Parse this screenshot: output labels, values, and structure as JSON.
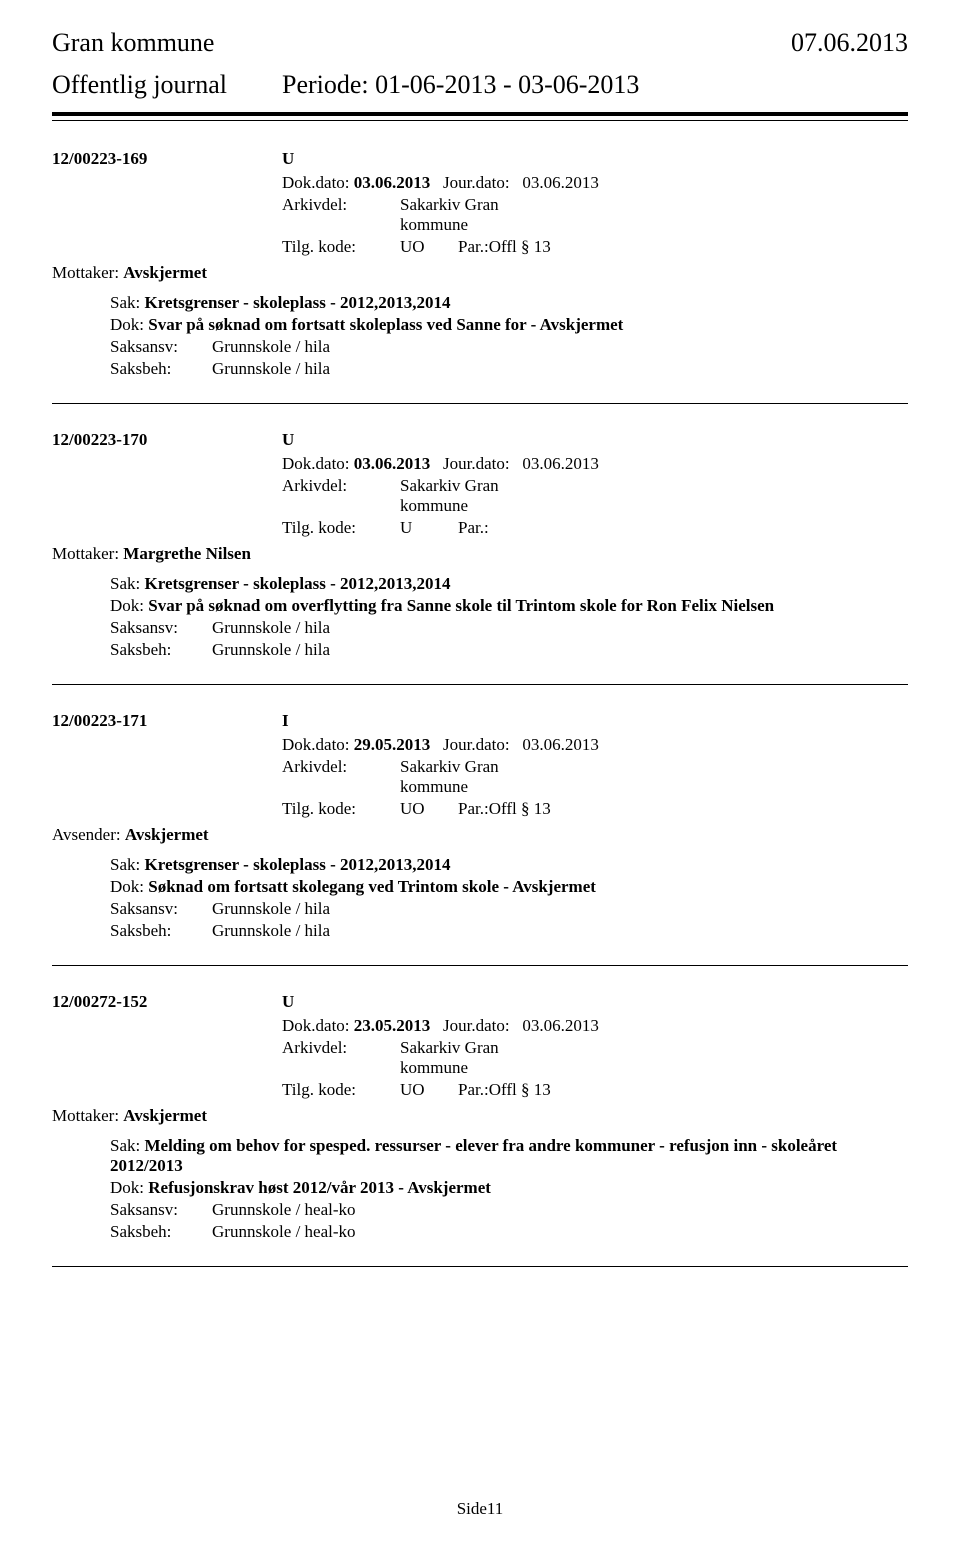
{
  "header": {
    "title": "Gran kommune",
    "date": "07.06.2013",
    "journal_label": "Offentlig journal",
    "period": "Periode: 01-06-2013 - 03-06-2013"
  },
  "labels": {
    "dok_dato": "Dok.dato:",
    "jour_dato": "Jour.dato:",
    "arkivdel": "Arkivdel:",
    "tilg_kode": "Tilg. kode:",
    "par": "Par.:",
    "mottaker": "Mottaker:",
    "avsender": "Avsender:",
    "sak": "Sak:",
    "dok": "Dok:",
    "saksansv": "Saksansv:",
    "saksbeh": "Saksbeh:"
  },
  "entries": [
    {
      "case_id": "12/00223-169",
      "type": "U",
      "dok_dato": "03.06.2013",
      "jour_dato": "03.06.2013",
      "arkivdel": "Sakarkiv Gran kommune",
      "tilg_code": "UO",
      "par_text": "Offl § 13",
      "party_label": "Mottaker:",
      "party": "Avskjermet",
      "sak": "Kretsgrenser - skoleplass - 2012,2013,2014",
      "dok": "Svar på søknad om fortsatt skoleplass ved Sanne for - Avskjermet",
      "saksansv": "Grunnskole / hila",
      "saksbeh": "Grunnskole / hila"
    },
    {
      "case_id": "12/00223-170",
      "type": "U",
      "dok_dato": "03.06.2013",
      "jour_dato": "03.06.2013",
      "arkivdel": "Sakarkiv Gran kommune",
      "tilg_code": "U",
      "par_text": "",
      "party_label": "Mottaker:",
      "party": "Margrethe Nilsen",
      "sak": "Kretsgrenser - skoleplass - 2012,2013,2014",
      "dok": "Svar på søknad om overflytting fra Sanne skole til Trintom skole for Ron Felix Nielsen",
      "saksansv": "Grunnskole / hila",
      "saksbeh": "Grunnskole / hila"
    },
    {
      "case_id": "12/00223-171",
      "type": "I",
      "dok_dato": "29.05.2013",
      "jour_dato": "03.06.2013",
      "arkivdel": "Sakarkiv Gran kommune",
      "tilg_code": "UO",
      "par_text": "Offl § 13",
      "party_label": "Avsender:",
      "party": "Avskjermet",
      "sak": "Kretsgrenser - skoleplass - 2012,2013,2014",
      "dok": "Søknad om fortsatt skolegang ved Trintom skole     - Avskjermet",
      "saksansv": "Grunnskole / hila",
      "saksbeh": "Grunnskole / hila"
    },
    {
      "case_id": "12/00272-152",
      "type": "U",
      "dok_dato": "23.05.2013",
      "jour_dato": "03.06.2013",
      "arkivdel": "Sakarkiv Gran kommune",
      "tilg_code": "UO",
      "par_text": "Offl § 13",
      "party_label": "Mottaker:",
      "party": "Avskjermet",
      "sak": "Melding om behov for spesped. ressurser - elever fra andre kommuner - refusjon inn - skoleåret 2012/2013",
      "dok": "Refusjonskrav høst 2012/vår 2013    - Avskjermet",
      "saksansv": "Grunnskole / heal-ko",
      "saksbeh": "Grunnskole / heal-ko"
    }
  ],
  "page_number": "Side11"
}
